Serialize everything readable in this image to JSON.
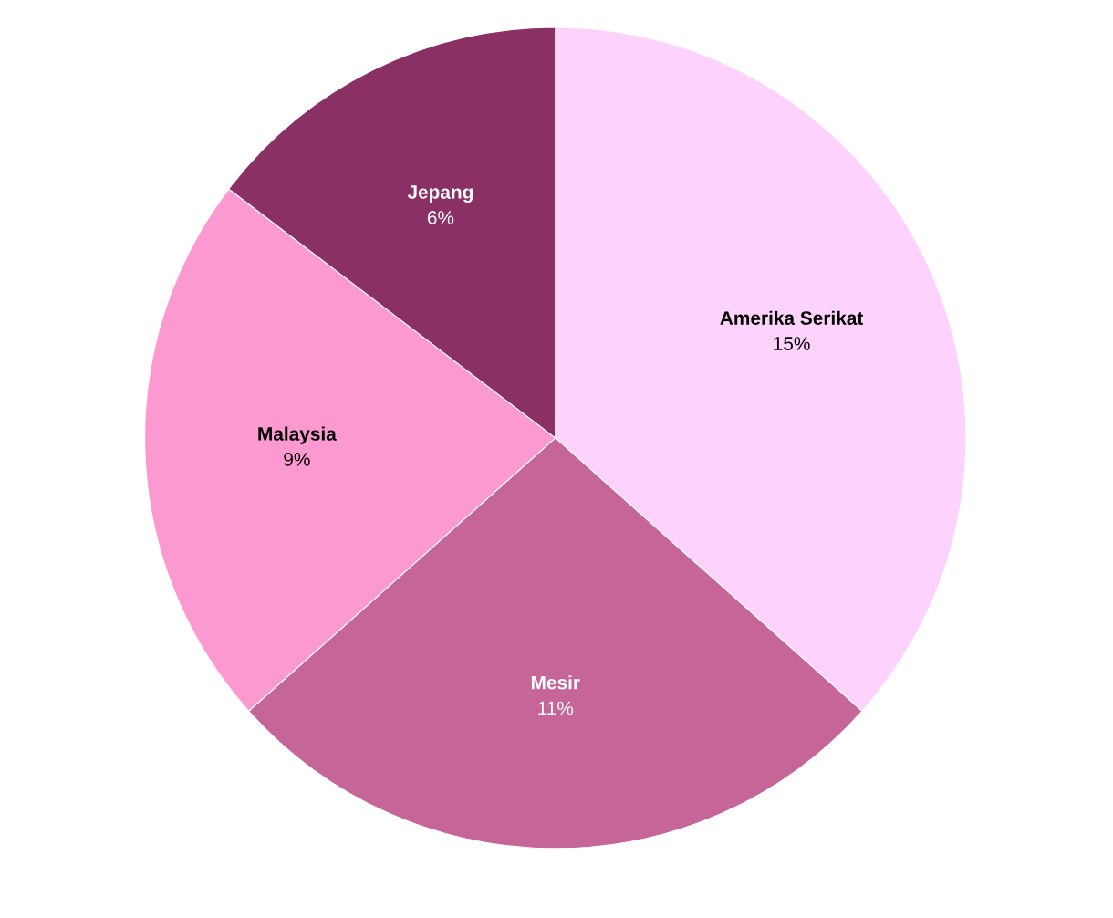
{
  "chart_data": {
    "type": "pie",
    "categories": [
      "Amerika Serikat",
      "Mesir",
      "Malaysia",
      "Jepang"
    ],
    "values": [
      15,
      11,
      9,
      6
    ],
    "colors": [
      "#fdd3fd",
      "#c56598",
      "#fc99d1",
      "#8a3064"
    ],
    "value_labels": [
      "15%",
      "11%",
      "9%",
      "6%"
    ],
    "legend": false
  }
}
